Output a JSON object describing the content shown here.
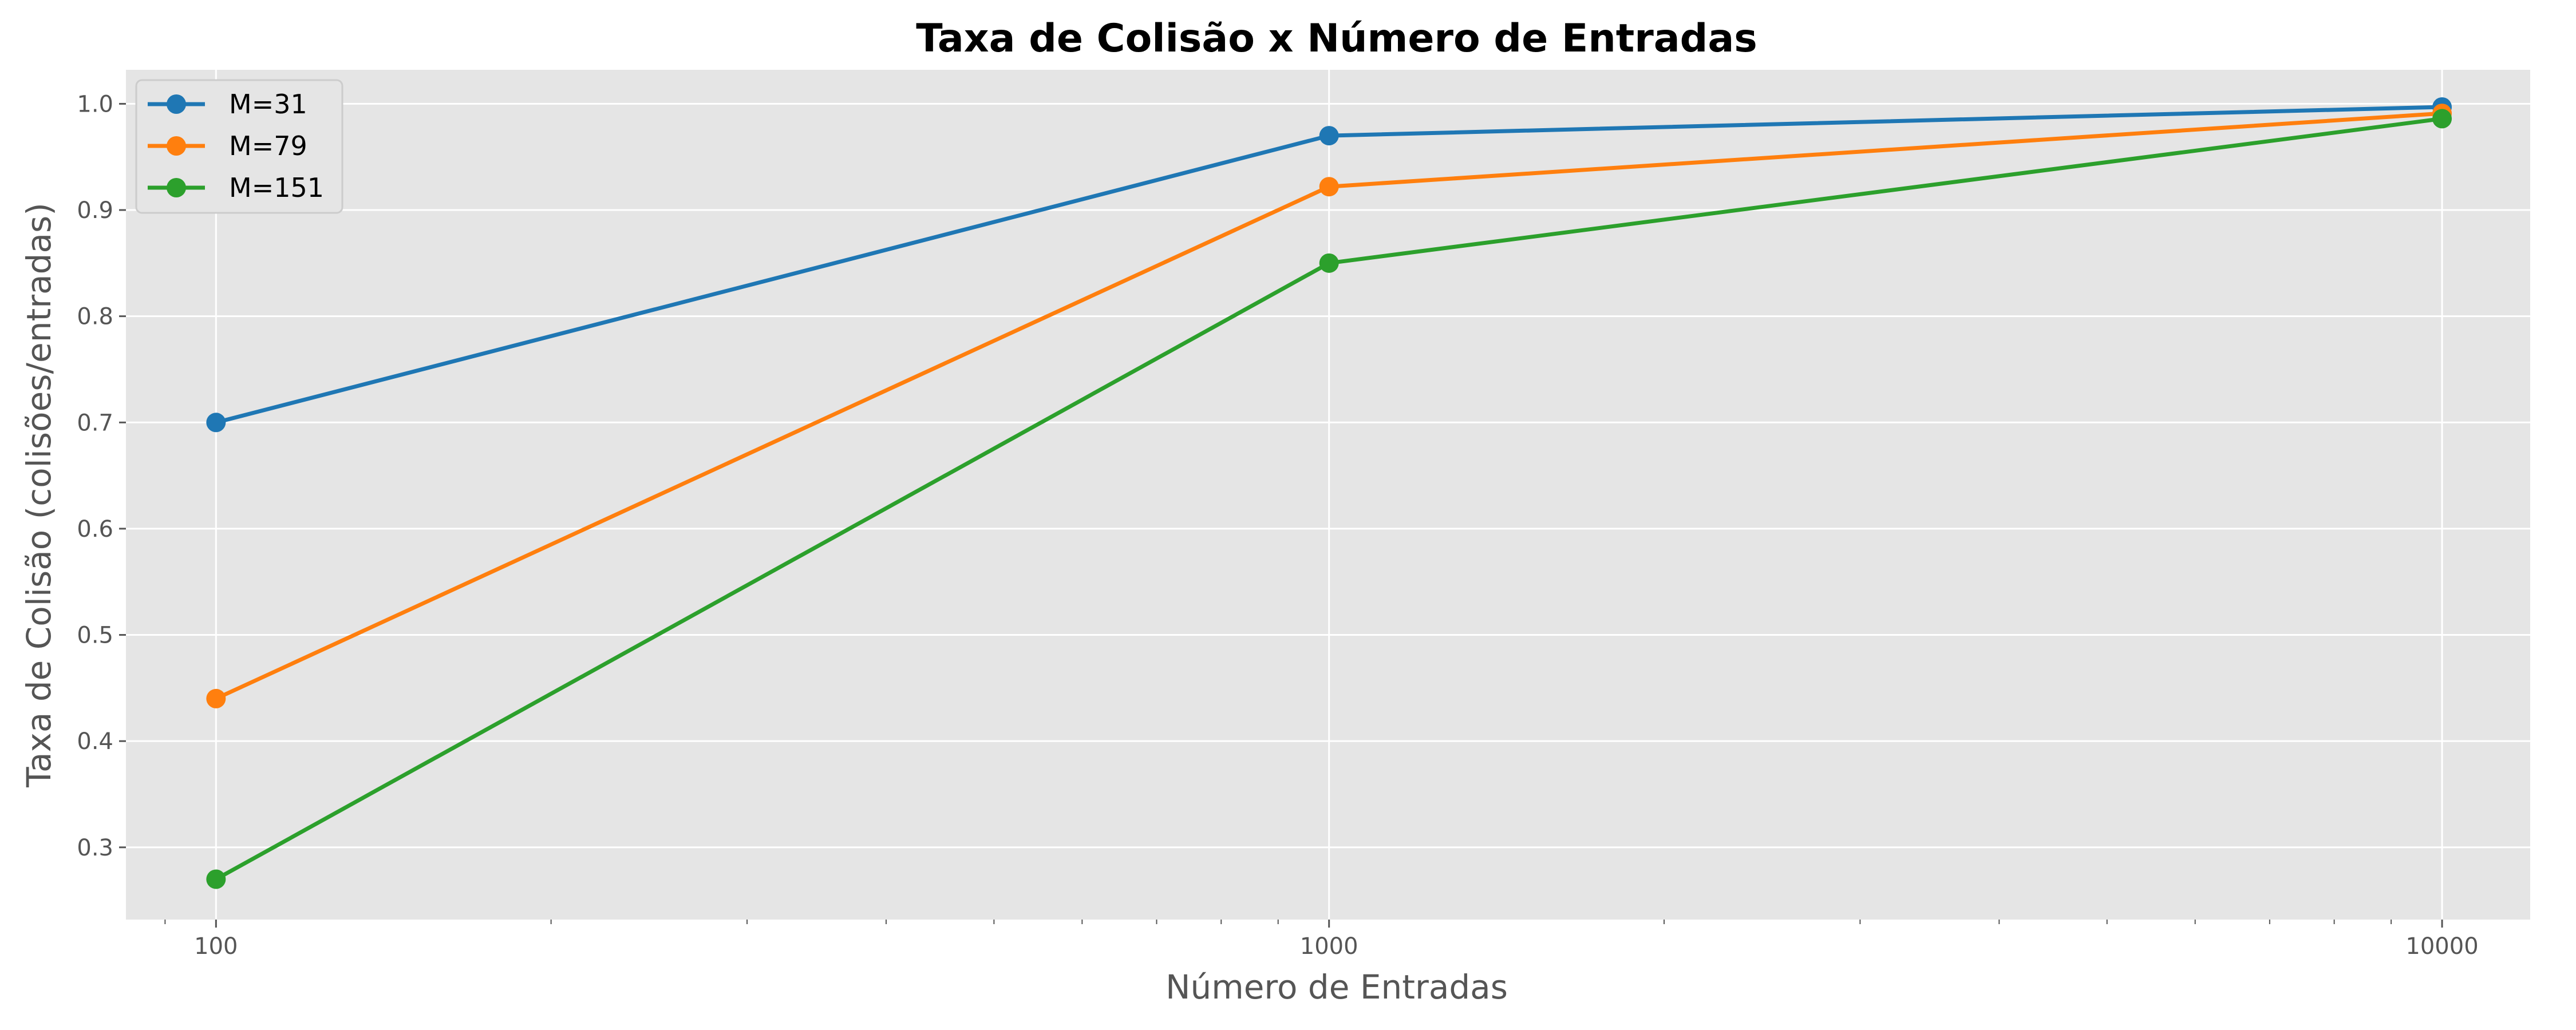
{
  "chart_data": {
    "type": "line",
    "title": "Taxa de Colisão x Número de Entradas",
    "xlabel": "Número de Entradas",
    "ylabel": "Taxa de Colisão (colisões/entradas)",
    "xscale": "log",
    "x": [
      100,
      1000,
      10000
    ],
    "xticks": [
      "100",
      "1000",
      "10000"
    ],
    "xlim": [
      83,
      12000
    ],
    "ylim": [
      0.232,
      1.032
    ],
    "yticks": [
      "0.3",
      "0.4",
      "0.5",
      "0.6",
      "0.7",
      "0.8",
      "0.9",
      "1.0"
    ],
    "grid": true,
    "legend_position": "top-left",
    "background": "#e5e5e5",
    "series": [
      {
        "name": "M=31",
        "color": "#1f77b4",
        "values": [
          0.7,
          0.97,
          0.997
        ]
      },
      {
        "name": "M=79",
        "color": "#ff7f0e",
        "values": [
          0.44,
          0.922,
          0.991
        ]
      },
      {
        "name": "M=151",
        "color": "#2ca02c",
        "values": [
          0.27,
          0.85,
          0.986
        ]
      }
    ]
  }
}
